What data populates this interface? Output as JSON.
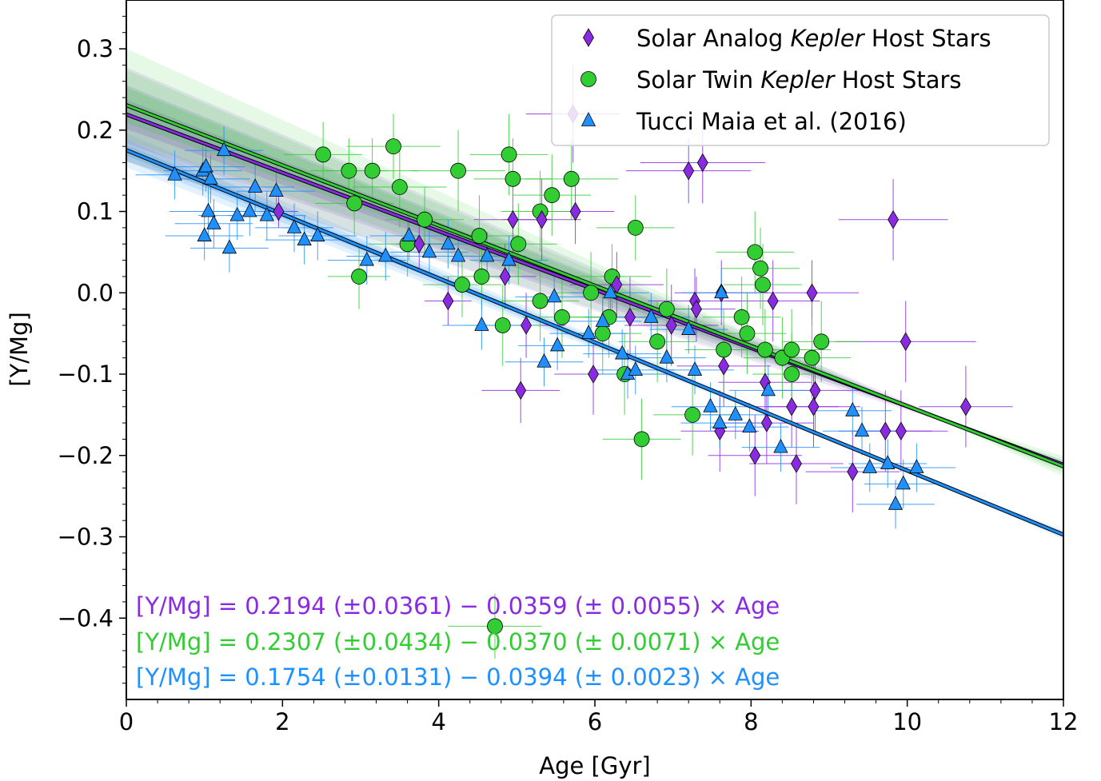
{
  "chart_data": {
    "type": "scatter",
    "xlabel": "Age [Gyr]",
    "ylabel": "[Y/Mg]",
    "xlim": [
      0,
      12
    ],
    "ylim": [
      -0.5,
      0.36
    ],
    "x_ticks": [
      0,
      2,
      4,
      6,
      8,
      10,
      12
    ],
    "y_ticks": [
      -0.4,
      -0.3,
      -0.2,
      -0.1,
      0.0,
      0.1,
      0.2,
      0.3
    ],
    "x_tick_labels": [
      "0",
      "2",
      "4",
      "6",
      "8",
      "10",
      "12"
    ],
    "y_tick_labels": [
      "−0.4",
      "−0.3",
      "−0.2",
      "−0.1",
      "0.0",
      "0.1",
      "0.2",
      "0.3"
    ],
    "grid": false,
    "legend_position": "top-right",
    "series": [
      {
        "name": "Solar Analog Kepler Host Stars",
        "name_prefix": "Solar Analog ",
        "name_italic": "Kepler",
        "name_suffix": " Host Stars",
        "marker": "diamond",
        "color": "#8a2be2",
        "points": [
          [
            1.95,
            0.1,
            0.25,
            0.02
          ],
          [
            3.75,
            0.06,
            0.3,
            0.03
          ],
          [
            4.12,
            -0.01,
            0.3,
            0.03
          ],
          [
            4.85,
            0.02,
            0.4,
            0.04
          ],
          [
            4.95,
            0.09,
            0.5,
            0.05
          ],
          [
            5.05,
            -0.12,
            0.5,
            0.04
          ],
          [
            5.12,
            -0.04,
            0.5,
            0.04
          ],
          [
            5.32,
            0.09,
            0.5,
            0.05
          ],
          [
            5.72,
            0.22,
            0.6,
            0.06
          ],
          [
            5.75,
            0.1,
            0.5,
            0.04
          ],
          [
            5.98,
            -0.1,
            0.5,
            0.05
          ],
          [
            6.28,
            0.01,
            0.6,
            0.04
          ],
          [
            6.45,
            -0.03,
            0.6,
            0.05
          ],
          [
            6.98,
            -0.04,
            0.6,
            0.05
          ],
          [
            7.2,
            0.15,
            0.8,
            0.04
          ],
          [
            7.28,
            -0.01,
            0.6,
            0.04
          ],
          [
            7.3,
            -0.02,
            0.5,
            0.04
          ],
          [
            7.38,
            0.16,
            0.8,
            0.05
          ],
          [
            7.6,
            -0.17,
            0.5,
            0.05
          ],
          [
            7.62,
            0.0,
            0.6,
            0.04
          ],
          [
            7.65,
            -0.09,
            0.6,
            0.05
          ],
          [
            8.05,
            -0.2,
            0.6,
            0.05
          ],
          [
            8.18,
            -0.11,
            0.6,
            0.05
          ],
          [
            8.2,
            -0.16,
            0.6,
            0.05
          ],
          [
            8.28,
            -0.01,
            0.6,
            0.05
          ],
          [
            8.52,
            -0.14,
            0.6,
            0.05
          ],
          [
            8.58,
            -0.21,
            0.6,
            0.05
          ],
          [
            8.78,
            0.0,
            0.6,
            0.04
          ],
          [
            8.8,
            -0.14,
            0.6,
            0.05
          ],
          [
            8.82,
            -0.12,
            0.6,
            0.05
          ],
          [
            9.3,
            -0.22,
            0.6,
            0.05
          ],
          [
            9.72,
            -0.17,
            0.6,
            0.05
          ],
          [
            9.82,
            0.09,
            0.7,
            0.05
          ],
          [
            9.92,
            -0.17,
            0.6,
            0.05
          ],
          [
            9.98,
            -0.06,
            0.9,
            0.05
          ],
          [
            10.75,
            -0.14,
            0.6,
            0.05
          ]
        ]
      },
      {
        "name": "Solar Twin Kepler Host Stars",
        "name_prefix": "Solar Twin ",
        "name_italic": "Kepler",
        "name_suffix": " Host Stars",
        "marker": "circle",
        "color": "#32cd32",
        "points": [
          [
            2.52,
            0.17,
            0.5,
            0.04
          ],
          [
            2.85,
            0.15,
            0.5,
            0.04
          ],
          [
            2.92,
            0.11,
            0.5,
            0.04
          ],
          [
            2.98,
            0.02,
            0.4,
            0.04
          ],
          [
            3.15,
            0.15,
            0.6,
            0.04
          ],
          [
            3.42,
            0.18,
            0.6,
            0.04
          ],
          [
            3.5,
            0.13,
            0.6,
            0.05
          ],
          [
            3.6,
            0.06,
            0.5,
            0.04
          ],
          [
            3.82,
            0.09,
            0.5,
            0.04
          ],
          [
            4.25,
            0.15,
            0.6,
            0.05
          ],
          [
            4.3,
            0.01,
            0.5,
            0.04
          ],
          [
            4.52,
            0.07,
            0.5,
            0.05
          ],
          [
            4.55,
            0.02,
            0.5,
            0.04
          ],
          [
            4.72,
            -0.41,
            0.6,
            0.04
          ],
          [
            4.82,
            -0.04,
            0.5,
            0.05
          ],
          [
            4.9,
            0.17,
            0.5,
            0.05
          ],
          [
            4.95,
            0.14,
            0.5,
            0.05
          ],
          [
            5.02,
            0.06,
            0.5,
            0.05
          ],
          [
            5.3,
            0.1,
            0.5,
            0.05
          ],
          [
            5.3,
            -0.01,
            0.5,
            0.05
          ],
          [
            5.45,
            0.12,
            0.5,
            0.05
          ],
          [
            5.58,
            -0.03,
            0.5,
            0.05
          ],
          [
            5.7,
            0.14,
            0.6,
            0.05
          ],
          [
            5.95,
            0.0,
            0.5,
            0.05
          ],
          [
            6.1,
            -0.05,
            0.5,
            0.05
          ],
          [
            6.18,
            -0.03,
            0.5,
            0.05
          ],
          [
            6.22,
            0.02,
            0.5,
            0.04
          ],
          [
            6.38,
            -0.1,
            0.5,
            0.05
          ],
          [
            6.52,
            0.08,
            0.5,
            0.04
          ],
          [
            6.6,
            -0.18,
            0.5,
            0.05
          ],
          [
            6.8,
            -0.06,
            0.5,
            0.05
          ],
          [
            6.92,
            -0.02,
            0.5,
            0.05
          ],
          [
            7.25,
            -0.15,
            0.5,
            0.05
          ],
          [
            7.65,
            -0.07,
            0.5,
            0.05
          ],
          [
            7.88,
            -0.03,
            0.5,
            0.05
          ],
          [
            7.95,
            -0.05,
            0.5,
            0.05
          ],
          [
            8.05,
            0.05,
            0.5,
            0.05
          ],
          [
            8.12,
            0.03,
            0.5,
            0.05
          ],
          [
            8.15,
            0.01,
            0.5,
            0.05
          ],
          [
            8.18,
            -0.07,
            0.5,
            0.05
          ],
          [
            8.4,
            -0.08,
            0.5,
            0.05
          ],
          [
            8.52,
            -0.07,
            0.5,
            0.05
          ],
          [
            8.52,
            -0.1,
            0.5,
            0.05
          ],
          [
            8.78,
            -0.08,
            0.5,
            0.05
          ],
          [
            8.9,
            -0.06,
            0.5,
            0.05
          ]
        ]
      },
      {
        "name": "Tucci Maia et al. (2016)",
        "name_prefix": "Tucci Maia et al. (2016)",
        "name_italic": "",
        "name_suffix": "",
        "marker": "triangle",
        "color": "#1e90ff",
        "points": [
          [
            0.62,
            0.145,
            0.5,
            0.03
          ],
          [
            0.98,
            0.15,
            0.5,
            0.03
          ],
          [
            1.0,
            0.07,
            0.5,
            0.03
          ],
          [
            1.02,
            0.155,
            0.5,
            0.03
          ],
          [
            1.05,
            0.1,
            0.5,
            0.03
          ],
          [
            1.08,
            0.14,
            0.5,
            0.03
          ],
          [
            1.12,
            0.085,
            0.5,
            0.03
          ],
          [
            1.25,
            0.175,
            0.5,
            0.03
          ],
          [
            1.32,
            0.055,
            0.5,
            0.03
          ],
          [
            1.42,
            0.095,
            0.5,
            0.03
          ],
          [
            1.58,
            0.1,
            0.5,
            0.03
          ],
          [
            1.65,
            0.13,
            0.5,
            0.03
          ],
          [
            1.8,
            0.095,
            0.5,
            0.03
          ],
          [
            1.92,
            0.125,
            0.5,
            0.03
          ],
          [
            2.15,
            0.08,
            0.5,
            0.03
          ],
          [
            2.28,
            0.065,
            0.5,
            0.03
          ],
          [
            2.45,
            0.07,
            0.5,
            0.03
          ],
          [
            3.08,
            0.04,
            0.5,
            0.03
          ],
          [
            3.32,
            0.045,
            0.5,
            0.03
          ],
          [
            3.62,
            0.07,
            0.5,
            0.03
          ],
          [
            3.88,
            0.05,
            0.5,
            0.03
          ],
          [
            4.12,
            0.06,
            0.5,
            0.03
          ],
          [
            4.25,
            0.045,
            0.5,
            0.03
          ],
          [
            4.55,
            -0.04,
            0.5,
            0.03
          ],
          [
            4.62,
            0.045,
            0.5,
            0.03
          ],
          [
            4.9,
            0.04,
            0.5,
            0.03
          ],
          [
            5.35,
            -0.085,
            0.5,
            0.03
          ],
          [
            5.48,
            -0.005,
            0.5,
            0.03
          ],
          [
            5.52,
            -0.065,
            0.5,
            0.03
          ],
          [
            5.92,
            -0.05,
            0.5,
            0.03
          ],
          [
            6.1,
            -0.035,
            0.5,
            0.03
          ],
          [
            6.2,
            0.0,
            0.5,
            0.03
          ],
          [
            6.35,
            -0.075,
            0.5,
            0.03
          ],
          [
            6.42,
            -0.1,
            0.5,
            0.03
          ],
          [
            6.52,
            -0.095,
            0.5,
            0.03
          ],
          [
            6.72,
            -0.03,
            0.5,
            0.03
          ],
          [
            6.92,
            -0.08,
            0.5,
            0.03
          ],
          [
            7.2,
            -0.045,
            0.5,
            0.03
          ],
          [
            7.28,
            -0.095,
            0.5,
            0.03
          ],
          [
            7.48,
            -0.14,
            0.5,
            0.03
          ],
          [
            7.6,
            -0.16,
            0.5,
            0.03
          ],
          [
            7.62,
            0.0,
            0.5,
            0.03
          ],
          [
            7.8,
            -0.15,
            0.5,
            0.03
          ],
          [
            7.98,
            -0.165,
            0.5,
            0.03
          ],
          [
            8.22,
            -0.12,
            0.5,
            0.03
          ],
          [
            8.38,
            -0.19,
            0.5,
            0.03
          ],
          [
            9.3,
            -0.145,
            0.5,
            0.03
          ],
          [
            9.42,
            -0.17,
            0.5,
            0.03
          ],
          [
            9.52,
            -0.215,
            0.5,
            0.03
          ],
          [
            9.75,
            -0.21,
            0.5,
            0.03
          ],
          [
            9.85,
            -0.26,
            0.5,
            0.03
          ],
          [
            9.95,
            -0.235,
            0.5,
            0.03
          ],
          [
            10.12,
            -0.215,
            0.5,
            0.03
          ]
        ]
      }
    ],
    "fits": [
      {
        "intercept": 0.2194,
        "slope": -0.0359,
        "color": "#8a2be2",
        "sigma_int": 0.0361,
        "sigma_slope": 0.0055
      },
      {
        "intercept": 0.2307,
        "slope": -0.037,
        "color": "#32cd32",
        "sigma_int": 0.0434,
        "sigma_slope": 0.0071
      },
      {
        "intercept": 0.1754,
        "slope": -0.0394,
        "color": "#1e90ff",
        "sigma_int": 0.0131,
        "sigma_slope": 0.0023
      }
    ],
    "annotations": [
      {
        "text": "[Y/Mg] = 0.2194 (±0.0361) − 0.0359 (± 0.0055) × Age",
        "color": "#8a2be2"
      },
      {
        "text": "[Y/Mg] = 0.2307 (±0.0434) − 0.0370 (± 0.0071) × Age",
        "color": "#32cd32"
      },
      {
        "text": "[Y/Mg] = 0.1754 (±0.0131) − 0.0394 (± 0.0023) × Age",
        "color": "#1e90ff"
      }
    ]
  }
}
